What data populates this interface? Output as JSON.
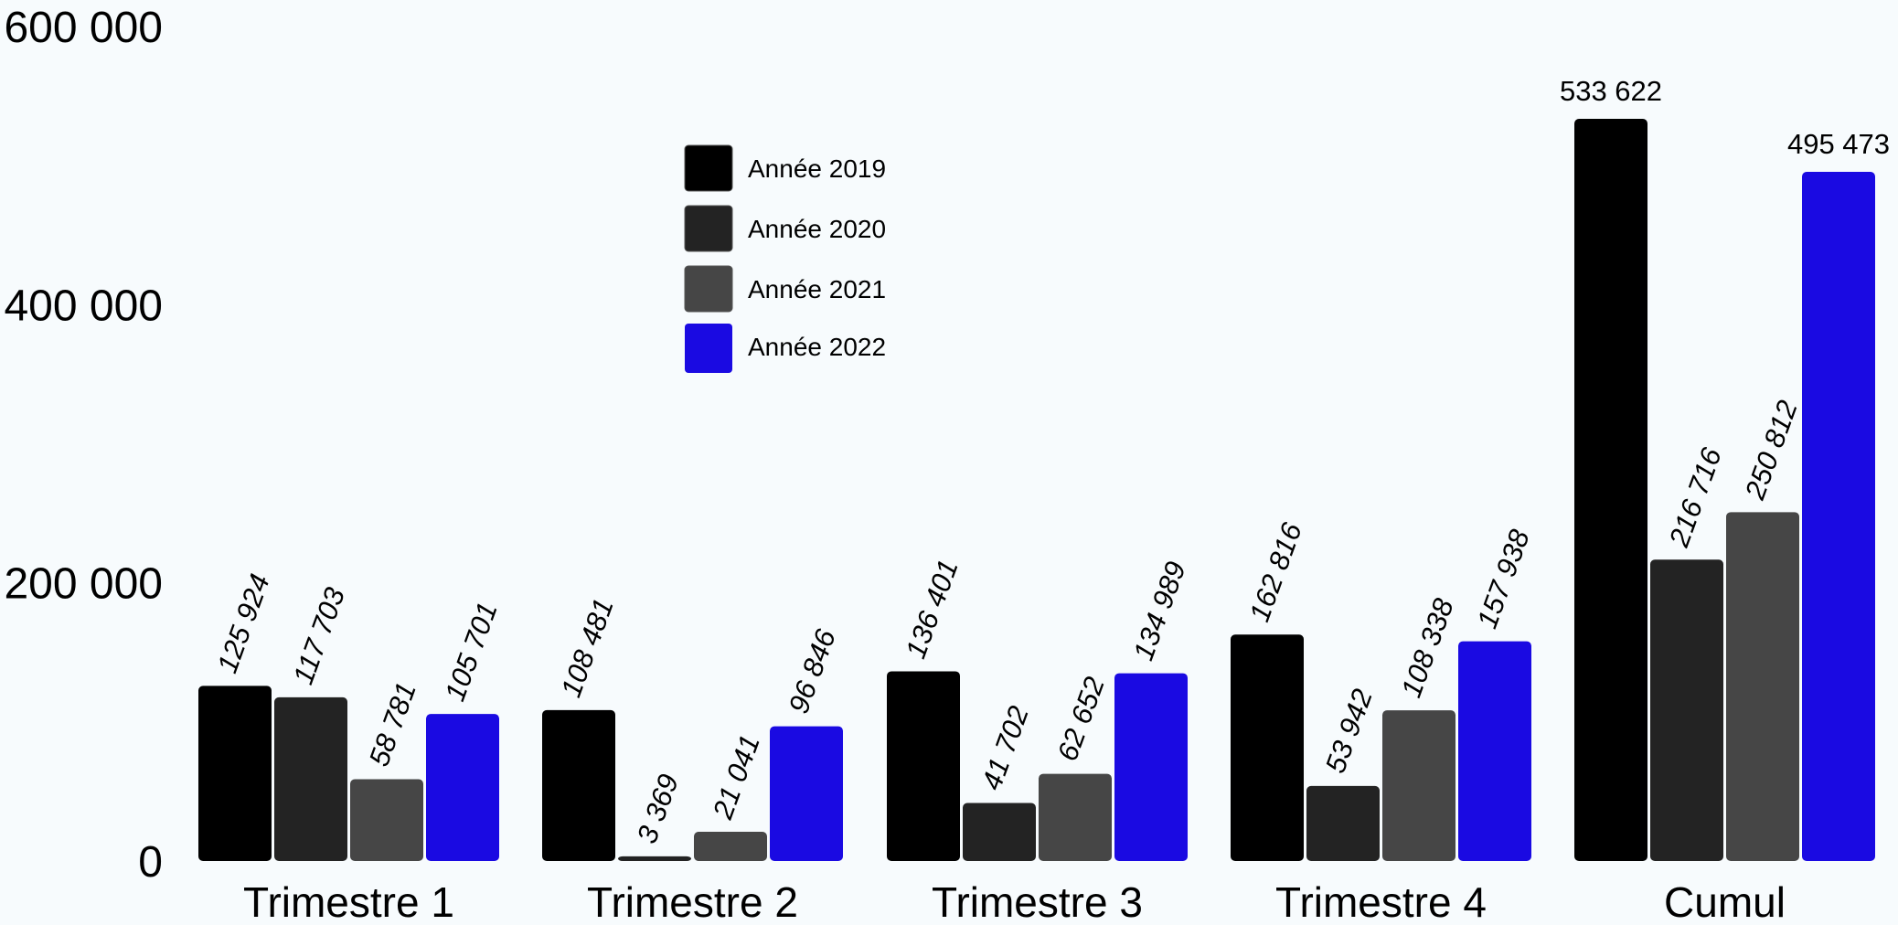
{
  "chart_data": {
    "type": "bar",
    "title": "",
    "xlabel": "",
    "ylabel": "",
    "ylim": [
      0,
      600000
    ],
    "y_ticks": [
      0,
      200000,
      400000,
      600000
    ],
    "y_tick_labels": [
      "0",
      "200 000",
      "400 000",
      "600 000"
    ],
    "grid": false,
    "legend_position": "top-center",
    "categories": [
      "Trimestre 1",
      "Trimestre 2",
      "Trimestre 3",
      "Trimestre 4",
      "Cumul"
    ],
    "series": [
      {
        "name": "Année 2019",
        "color": "#000000",
        "values": [
          125924,
          108481,
          136401,
          162816,
          533622
        ],
        "labels": [
          "125 924",
          "108 481",
          "136 401",
          "162 816",
          "533 622"
        ]
      },
      {
        "name": "Année 2020",
        "color": "#232323",
        "values": [
          117703,
          3369,
          41702,
          53942,
          216716
        ],
        "labels": [
          "117 703",
          "3 369",
          "41 702",
          "53 942",
          "216 716"
        ]
      },
      {
        "name": "Année 2021",
        "color": "#464646",
        "values": [
          58781,
          21041,
          62652,
          108338,
          250812
        ],
        "labels": [
          "58 781",
          "21 041",
          "62 652",
          "108 338",
          "250 812"
        ]
      },
      {
        "name": "Année 2022",
        "color": "#1a0ae2",
        "values": [
          105701,
          96846,
          134989,
          157938,
          495473
        ],
        "labels": [
          "105 701",
          "96 846",
          "134 989",
          "157 938",
          "495 473"
        ]
      }
    ]
  }
}
